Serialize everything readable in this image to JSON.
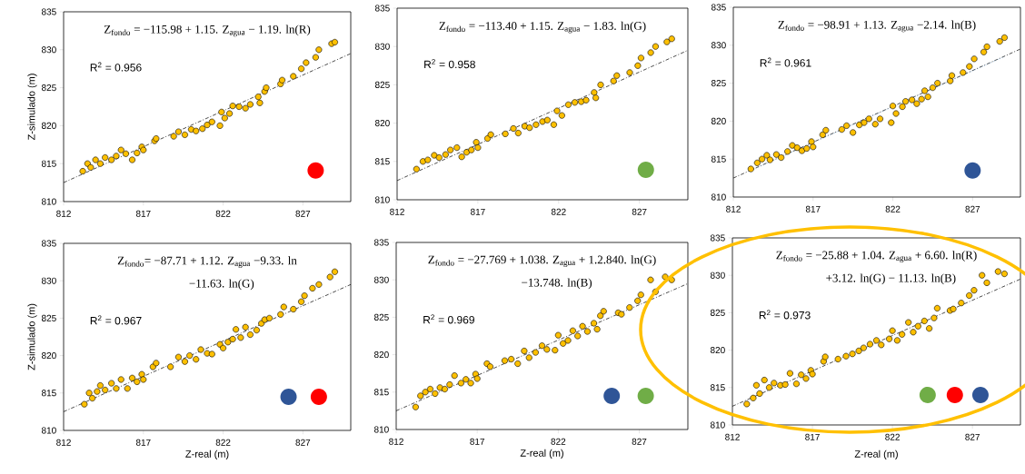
{
  "chart_data": [
    {
      "type": "scatter",
      "ylabel": "Z-simulado  (m)",
      "xlim": [
        812,
        830
      ],
      "ylim": [
        810,
        835
      ],
      "xticks": [
        812,
        817,
        822,
        827
      ],
      "yticks": [
        810,
        815,
        820,
        825,
        830,
        835
      ],
      "marker": "circle",
      "annotations": [
        "Z$_{fondo}$ = −115.98 + 1.15. Z$_{agua}$ − 1.19. ln(R)",
        "R$^{2}$ = 0.956"
      ],
      "series": [
        {
          "color": "#ffc000",
          "x": [
            813.2,
            813.5,
            813.7,
            814,
            814.3,
            814.6,
            815,
            815.3,
            815.6,
            815.9,
            816.3,
            816.6,
            816.9,
            817,
            817.7,
            817.8,
            818.9,
            819.2,
            819.6,
            820,
            820.3,
            820.7,
            821,
            821.3,
            821.8,
            821.9,
            822.1,
            822.4,
            822.6,
            823,
            823.4,
            823.7,
            824.2,
            824.3,
            824.6,
            824.7,
            825.6,
            825.7,
            826.4,
            826.9,
            827.2,
            827.8,
            828,
            828.8,
            829
          ],
          "values": [
            814,
            815,
            814.5,
            815.5,
            815,
            815.8,
            815.5,
            816,
            816.8,
            816.3,
            815.5,
            816.4,
            817.2,
            816.8,
            818,
            818.3,
            818.6,
            819.2,
            818.8,
            819.5,
            819.3,
            819.6,
            820.1,
            820.5,
            820,
            821.8,
            821,
            821.6,
            822.6,
            822.5,
            822.3,
            822.8,
            823.8,
            823,
            824.5,
            825,
            825.5,
            826,
            826.5,
            827.5,
            828.3,
            829,
            830,
            830.8,
            831
          ]
        },
        {
          "type": "line",
          "color": "#000000",
          "x": [
            812,
            830
          ],
          "values": [
            812.5,
            829.5
          ],
          "line_style": "dashed",
          "marker": "none"
        }
      ]
    },
    {
      "type": "scatter",
      "xlim": [
        812,
        830
      ],
      "ylim": [
        810,
        835
      ],
      "xticks": [
        812,
        817,
        822,
        827
      ],
      "yticks": [
        810,
        815,
        820,
        825,
        830,
        835
      ],
      "marker": "circle",
      "annotations": [
        "Z$_{fondo}$ = −113.40 + 1.15. Z$_{agua}$ − 1.83. ln(G)",
        "R$^{2}$ = 0.958"
      ],
      "series": [
        {
          "color": "#ffc000",
          "x": [
            813.2,
            813.6,
            813.9,
            814.3,
            814.6,
            815,
            815.3,
            815.7,
            816,
            816.3,
            816.6,
            816.9,
            817,
            817.6,
            817.8,
            818.7,
            819.2,
            819.5,
            819.9,
            820.2,
            820.6,
            821,
            821.3,
            821.7,
            821.9,
            822.2,
            822.6,
            823,
            823.4,
            823.7,
            824.2,
            824.3,
            824.6,
            825.4,
            825.6,
            826.4,
            826.9,
            827.1,
            827.7,
            828,
            828.7,
            829
          ],
          "values": [
            814,
            815,
            815.2,
            815.8,
            815.5,
            815.9,
            816.5,
            816.8,
            815.6,
            816.2,
            816.5,
            817.5,
            816.8,
            818,
            818.5,
            818.6,
            819.3,
            818.7,
            819.6,
            819.4,
            819.8,
            820.2,
            820.4,
            819.8,
            821.6,
            821,
            822.4,
            822.7,
            822.8,
            823,
            824,
            823.3,
            825,
            825.5,
            826.2,
            826.6,
            827.5,
            828.5,
            829.2,
            830,
            830.6,
            831
          ]
        },
        {
          "type": "line",
          "color": "#000000",
          "x": [
            812,
            830
          ],
          "values": [
            812.5,
            829.5
          ],
          "line_style": "dashed",
          "marker": "none"
        }
      ]
    },
    {
      "type": "scatter",
      "xlim": [
        812,
        830
      ],
      "ylim": [
        810,
        835
      ],
      "xticks": [
        812,
        817,
        822,
        827
      ],
      "yticks": [
        810,
        815,
        820,
        825,
        830,
        835
      ],
      "marker": "circle",
      "annotations": [
        "Z$_{fondo}$ = −98.91 + 1.13. Z$_{agua}$ −2.14. ln(B)",
        "R$^{2}$ = 0.961"
      ],
      "series": [
        {
          "color": "#ffc000",
          "x": [
            813.1,
            813.5,
            813.8,
            814.1,
            814.3,
            814.7,
            815,
            815.4,
            815.7,
            816,
            816.3,
            816.6,
            816.9,
            817,
            817.6,
            817.8,
            818.8,
            819.1,
            819.5,
            819.9,
            820.2,
            820.5,
            820.9,
            821.2,
            821.9,
            822,
            822.2,
            822.6,
            822.8,
            823.2,
            823.5,
            823.8,
            824,
            824.2,
            824.5,
            824.8,
            825.6,
            825.7,
            826.4,
            826.8,
            827.1,
            827.7,
            827.9,
            828.7,
            829
          ],
          "values": [
            813.7,
            814.5,
            815,
            815.5,
            814.9,
            815.6,
            815.2,
            816,
            816.8,
            816.5,
            816.1,
            816.4,
            817.3,
            816.6,
            818.2,
            818.8,
            818.9,
            819.4,
            818.5,
            819.5,
            819.8,
            820.3,
            819.6,
            820.3,
            819.8,
            822,
            821,
            821.9,
            822.6,
            822.8,
            822.3,
            822.9,
            824,
            823.2,
            824.4,
            825,
            825.3,
            826,
            826.4,
            827.2,
            828.2,
            829.1,
            829.8,
            830.5,
            831
          ]
        },
        {
          "type": "line",
          "color": "#000000",
          "x": [
            812,
            830
          ],
          "values": [
            812.5,
            829.5
          ],
          "line_style": "dashed",
          "marker": "none"
        },
        {
          "type": "line",
          "color": "#5b9bd5",
          "x": [
            813,
            829
          ],
          "values": [
            813.4,
            828.5
          ],
          "line_style": "dotted",
          "marker": "none"
        }
      ]
    },
    {
      "type": "scatter",
      "xlabel": "Z-real (m)",
      "ylabel": "Z-simulado (m)",
      "xlim": [
        812,
        830
      ],
      "ylim": [
        810,
        835
      ],
      "xticks": [
        812,
        817,
        822,
        827
      ],
      "yticks": [
        810,
        815,
        820,
        825,
        830,
        835
      ],
      "marker": "circle",
      "annotations": [
        "Z$_{fondo}$= −87.71 + 1.12. Z$_{agua}$ −9.33. ln",
        "−11.63. ln(G)",
        "R$^{2}$ = 0.967"
      ],
      "series": [
        {
          "color": "#ffc000",
          "x": [
            813.3,
            813.6,
            813.8,
            814.1,
            814.3,
            814.6,
            815,
            815.3,
            815.6,
            816,
            816.3,
            816.6,
            816.9,
            817,
            817.6,
            817.8,
            818.7,
            819.2,
            819.6,
            819.9,
            820.3,
            820.6,
            821,
            821.3,
            821.8,
            822,
            822.3,
            822.6,
            822.8,
            823.1,
            823.4,
            823.7,
            824.1,
            824.4,
            824.6,
            824.9,
            825.6,
            825.8,
            826.4,
            826.9,
            827.1,
            827.6,
            828,
            828.7,
            829
          ],
          "values": [
            813.5,
            815,
            814.3,
            815.2,
            816,
            815.4,
            816.3,
            815.6,
            816.8,
            815.6,
            817,
            816.5,
            817.5,
            816.8,
            818.5,
            819,
            818.5,
            819.8,
            819.2,
            820,
            819.5,
            820.8,
            820.3,
            820.2,
            821.5,
            821,
            821.8,
            822.2,
            823.5,
            822.4,
            823.8,
            822.8,
            823.4,
            824.3,
            824.8,
            825,
            825.5,
            826.5,
            826.2,
            827.2,
            828,
            829,
            829.5,
            830.5,
            831.2
          ]
        },
        {
          "type": "line",
          "color": "#000000",
          "x": [
            812,
            830
          ],
          "values": [
            812.5,
            829.5
          ],
          "line_style": "dashed",
          "marker": "none"
        }
      ]
    },
    {
      "type": "scatter",
      "xlabel": "Z-real (m)",
      "xlim": [
        812,
        830
      ],
      "ylim": [
        810,
        835
      ],
      "xticks": [
        812,
        817,
        822,
        827
      ],
      "yticks": [
        810,
        815,
        820,
        825,
        830,
        835
      ],
      "marker": "circle",
      "annotations": [
        "Z$_{fondo}$ = −27.769 + 1.038. Z$_{agua}$ + 1.2.840. ln(G)",
        "−13.748. ln(B)",
        "R$^{2}$ = 0.969"
      ],
      "series": [
        {
          "color": "#ffc000",
          "x": [
            813.2,
            813.5,
            813.8,
            814.1,
            814.4,
            814.7,
            815,
            815.3,
            815.6,
            816,
            816.3,
            816.6,
            816.9,
            817,
            817.6,
            817.8,
            818.7,
            819.1,
            819.5,
            819.9,
            820.2,
            820.6,
            821,
            821.3,
            821.8,
            822,
            822.3,
            822.6,
            822.9,
            823.2,
            823.5,
            823.8,
            824.2,
            824.4,
            824.6,
            824.8,
            825.7,
            825.9,
            826.4,
            826.9,
            827.1,
            827.7,
            828,
            828.6,
            829
          ],
          "values": [
            813,
            814.5,
            815,
            815.4,
            814.8,
            815.6,
            815.4,
            816,
            817.2,
            816.2,
            816.7,
            816.2,
            817.4,
            816.8,
            818.8,
            818.4,
            819.2,
            819.4,
            818.8,
            820.5,
            819.6,
            820.3,
            821.2,
            820.7,
            820.6,
            822.6,
            821.5,
            821.9,
            823.2,
            822.5,
            823.8,
            823.1,
            824.2,
            823.4,
            825.2,
            825.8,
            825.6,
            825.4,
            826.3,
            827.2,
            828,
            830,
            828.4,
            830.4,
            830
          ]
        },
        {
          "type": "line",
          "color": "#000000",
          "x": [
            812,
            830
          ],
          "values": [
            812.5,
            829.5
          ],
          "line_style": "dashed",
          "marker": "none"
        }
      ]
    },
    {
      "type": "scatter",
      "xlabel": "Z-real  (m)",
      "xlim": [
        812,
        830
      ],
      "ylim": [
        810,
        835
      ],
      "xticks": [
        812,
        817,
        822,
        827
      ],
      "yticks": [
        810,
        815,
        820,
        825,
        830,
        835
      ],
      "marker": "circle",
      "annotations": [
        "Z$_{fondo}$ = −25.88 + 1.04. Z$_{agua}$ + 6.60. ln(R)",
        "+3.12. ln(G) − 11.13. ln(B)",
        "R$^{2}$ = 0.973"
      ],
      "series": [
        {
          "color": "#ffc000",
          "x": [
            812.9,
            813.3,
            813.5,
            813.7,
            814,
            814.3,
            814.6,
            815,
            815.3,
            815.6,
            816,
            816.3,
            816.6,
            816.9,
            817,
            817.7,
            817.8,
            818.6,
            819.1,
            819.5,
            819.9,
            820.2,
            820.6,
            821,
            821.3,
            821.8,
            822,
            822.3,
            822.6,
            823,
            823.3,
            823.6,
            824,
            824.3,
            824.6,
            824.8,
            825.6,
            825.8,
            826.3,
            826.8,
            827.1,
            827.6,
            827.9,
            828.6,
            829
          ],
          "values": [
            812.8,
            813.6,
            815.3,
            814.2,
            816,
            815,
            815.6,
            815.3,
            815.4,
            816.9,
            815.5,
            816.7,
            816.2,
            817.3,
            816.8,
            818.5,
            819.1,
            818.8,
            819.2,
            819.5,
            819.9,
            820.3,
            820.8,
            821.3,
            820.7,
            821.5,
            822.6,
            821.3,
            822.1,
            823.7,
            822.4,
            823.2,
            823.9,
            822.9,
            824.3,
            825.6,
            825.3,
            825.5,
            826.3,
            827.3,
            828,
            830,
            829,
            830.5,
            830.2
          ]
        },
        {
          "type": "line",
          "color": "#000000",
          "x": [
            812,
            830
          ],
          "values": [
            812.5,
            829.5
          ],
          "line_style": "dashed",
          "marker": "none"
        }
      ]
    }
  ]
}
